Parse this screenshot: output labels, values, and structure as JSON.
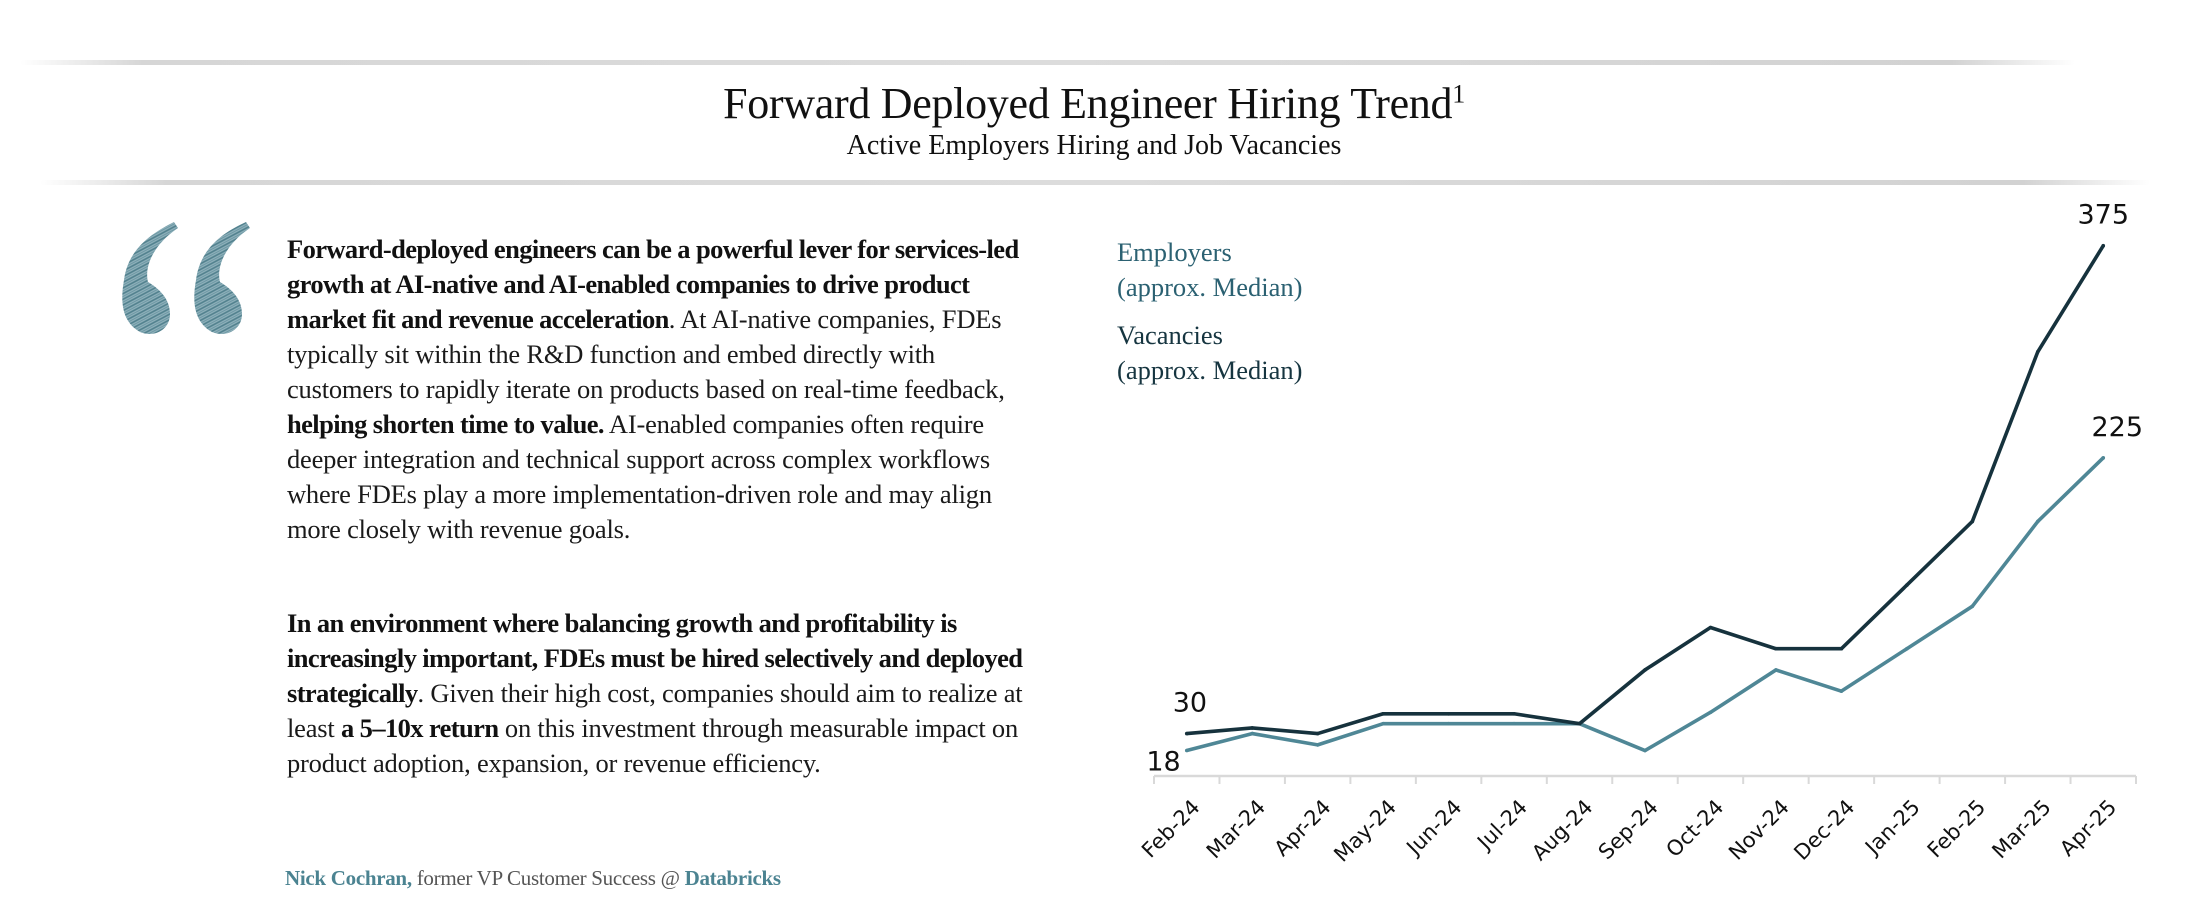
{
  "header": {
    "title": "Forward Deployed Engineer Hiring Trend",
    "title_footnote": "1",
    "subtitle": "Active Employers Hiring and Job Vacancies"
  },
  "quote": {
    "icon": "quote-mark-icon",
    "icon_color": "#5f8f9c",
    "para1": [
      {
        "text": "Forward-deployed engineers can be a powerful lever for services-led growth at AI-native and AI-enabled companies to drive product market fit and revenue acceleration",
        "bold": true
      },
      {
        "text": ". At AI-native companies, FDEs typically sit within the R&D function and embed directly with customers to rapidly iterate on products based on real-time feedback, ",
        "bold": false
      },
      {
        "text": "helping shorten time to value.",
        "bold": true
      },
      {
        "text": " AI-enabled companies often require deeper integration and technical support across complex workflows where FDEs play a more implementation-driven role and may align more closely with revenue goals.",
        "bold": false
      }
    ],
    "para2": [
      {
        "text": "In an environment where balancing growth and profitability is increasingly important, FDEs must be hired selectively and deployed strategically",
        "bold": true
      },
      {
        "text": ". Given their high cost, companies should aim to realize at least ",
        "bold": false
      },
      {
        "text": "a 5–10x return",
        "bold": true
      },
      {
        "text": " on this investment through measurable impact on product adoption, expansion, or revenue efficiency.",
        "bold": false
      }
    ],
    "attribution": {
      "name": "Nick Cochran,",
      "role": " former VP Customer Success @ ",
      "company": "Databricks"
    }
  },
  "legend": {
    "employers_line1": "Employers",
    "employers_line2": "(approx. Median)",
    "vacancies_line1": "Vacancies",
    "vacancies_line2": "(approx. Median)"
  },
  "chart_data": {
    "type": "line",
    "title": "Forward Deployed Engineer Hiring Trend",
    "subtitle": "Active Employers Hiring and Job Vacancies",
    "xlabel": "",
    "ylabel": "",
    "categories": [
      "Feb-24",
      "Mar-24",
      "Apr-24",
      "May-24",
      "Jun-24",
      "Jul-24",
      "Aug-24",
      "Sep-24",
      "Oct-24",
      "Nov-24",
      "Dec-24",
      "Jan-25",
      "Feb-25",
      "Mar-25",
      "Apr-25"
    ],
    "ylim": [
      0,
      375
    ],
    "grid": false,
    "legend_position": "top-left",
    "series": [
      {
        "name": "Vacancies (approx. Median)",
        "color": "#16323d",
        "values": [
          30,
          34,
          30,
          44,
          44,
          44,
          37,
          75,
          105,
          90,
          90,
          135,
          180,
          300,
          375
        ],
        "labels": [
          {
            "index": 0,
            "text": "30"
          },
          {
            "index": 14,
            "text": "375"
          }
        ]
      },
      {
        "name": "Employers (approx. Median)",
        "color": "#4f8796",
        "values": [
          18,
          30,
          22,
          37,
          37,
          37,
          37,
          18,
          45,
          75,
          60,
          90,
          120,
          180,
          225
        ],
        "labels": [
          {
            "index": 0,
            "text": "18"
          },
          {
            "index": 14,
            "text": "225"
          }
        ]
      }
    ],
    "axis_color": "#d9d9d9"
  }
}
